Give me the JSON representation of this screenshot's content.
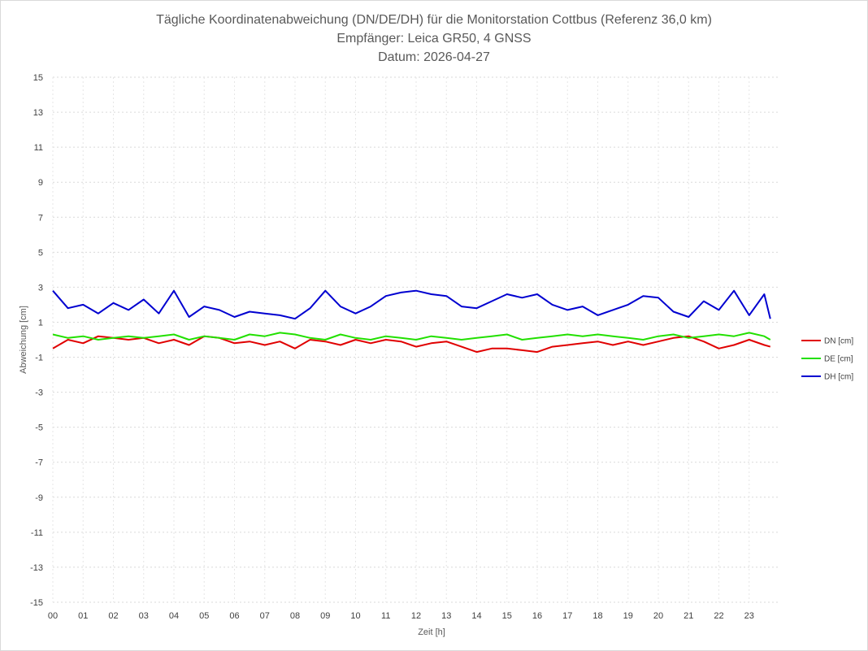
{
  "chart_data": {
    "type": "line",
    "title_lines": [
      "Tägliche Koordinatenabweichung (DN/DE/DH) für die Monitorstation Cottbus (Referenz 36,0 km)",
      "Empfänger: Leica GR50, 4 GNSS",
      "Datum: 2026-04-27"
    ],
    "xlabel": "Zeit [h]",
    "ylabel": "Abweichung [cm]",
    "x_ticks": [
      "00",
      "01",
      "02",
      "03",
      "04",
      "05",
      "06",
      "07",
      "08",
      "09",
      "10",
      "11",
      "12",
      "13",
      "14",
      "15",
      "16",
      "17",
      "18",
      "19",
      "20",
      "21",
      "22",
      "23"
    ],
    "xlim": [
      0,
      24
    ],
    "y_ticks": [
      "15",
      "13",
      "11",
      "9",
      "7",
      "5",
      "3",
      "1",
      "-1",
      "-3",
      "-5",
      "-7",
      "-9",
      "-11",
      "-13",
      "-15"
    ],
    "ylim": [
      -15,
      15
    ],
    "grid": true,
    "legend_position": "right",
    "sample_hours": [
      0,
      0.5,
      1,
      1.5,
      2,
      2.5,
      3,
      3.5,
      4,
      4.5,
      5,
      5.5,
      6,
      6.5,
      7,
      7.5,
      8,
      8.5,
      9,
      9.5,
      10,
      10.5,
      11,
      11.5,
      12,
      12.5,
      13,
      13.5,
      14,
      14.5,
      15,
      15.5,
      16,
      16.5,
      17,
      17.5,
      18,
      18.5,
      19,
      19.5,
      20,
      20.5,
      21,
      21.5,
      22,
      22.5,
      23,
      23.5,
      23.7
    ],
    "series": [
      {
        "name": "DN [cm]",
        "color": "#e00000",
        "values": [
          -0.5,
          0.0,
          -0.2,
          0.2,
          0.1,
          0.0,
          0.1,
          -0.2,
          0.0,
          -0.3,
          0.2,
          0.1,
          -0.2,
          -0.1,
          -0.3,
          -0.1,
          -0.5,
          0.0,
          -0.1,
          -0.3,
          0.0,
          -0.2,
          0.0,
          -0.1,
          -0.4,
          -0.2,
          -0.1,
          -0.4,
          -0.7,
          -0.5,
          -0.5,
          -0.6,
          -0.7,
          -0.4,
          -0.3,
          -0.2,
          -0.1,
          -0.3,
          -0.1,
          -0.3,
          -0.1,
          0.1,
          0.2,
          -0.1,
          -0.5,
          -0.3,
          0.0,
          -0.3,
          -0.4
        ]
      },
      {
        "name": "DE [cm]",
        "color": "#22e000",
        "values": [
          0.3,
          0.1,
          0.2,
          0.0,
          0.1,
          0.2,
          0.1,
          0.2,
          0.3,
          0.0,
          0.2,
          0.1,
          0.0,
          0.3,
          0.2,
          0.4,
          0.3,
          0.1,
          0.0,
          0.3,
          0.1,
          0.0,
          0.2,
          0.1,
          0.0,
          0.2,
          0.1,
          0.0,
          0.1,
          0.2,
          0.3,
          0.0,
          0.1,
          0.2,
          0.3,
          0.2,
          0.3,
          0.2,
          0.1,
          0.0,
          0.2,
          0.3,
          0.1,
          0.2,
          0.3,
          0.2,
          0.4,
          0.2,
          0.0
        ]
      },
      {
        "name": "DH [cm]",
        "color": "#0000d0",
        "values": [
          2.8,
          1.8,
          2.0,
          1.5,
          2.1,
          1.7,
          2.3,
          1.5,
          2.8,
          1.3,
          1.9,
          1.7,
          1.3,
          1.6,
          1.5,
          1.4,
          1.2,
          1.8,
          2.8,
          1.9,
          1.5,
          1.9,
          2.5,
          2.7,
          2.8,
          2.6,
          2.5,
          1.9,
          1.8,
          2.2,
          2.6,
          2.4,
          2.6,
          2.0,
          1.7,
          1.9,
          1.4,
          1.7,
          2.0,
          2.5,
          2.4,
          1.6,
          1.3,
          2.2,
          1.7,
          2.8,
          1.4,
          2.6,
          1.2
        ]
      }
    ]
  }
}
